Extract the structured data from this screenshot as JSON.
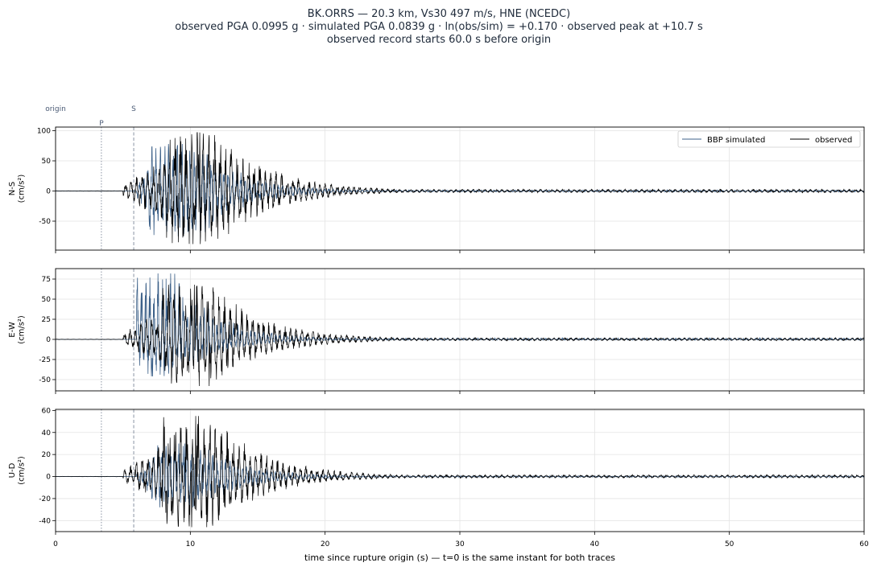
{
  "figure": {
    "title_lines": [
      "BK.ORRS  —  20.3 km, Vs30 497 m/s, HNE (NCEDC)",
      "observed PGA 0.0995 g   ·   simulated PGA 0.0839 g   ·   ln(obs/sim) = +0.170   ·   observed peak at +10.7 s",
      "observed record starts 60.0 s before origin"
    ],
    "xlabel": "time since rupture origin (s)   —   t=0 is the same instant for both traces",
    "phase_labels": {
      "origin": "origin",
      "p": "P",
      "s": "S"
    },
    "legend": {
      "simulated": "BBP simulated",
      "observed": "observed"
    }
  },
  "chart_data": {
    "type": "line",
    "x_unit": "s",
    "xlim": [
      0,
      60
    ],
    "x_ticks": [
      0,
      10,
      20,
      30,
      40,
      50,
      60
    ],
    "phase_times": {
      "origin": 0.0,
      "p": 3.4,
      "s": 5.8
    },
    "observed_peak_time": 10.7,
    "colors": {
      "simulated": "#3d6189",
      "observed": "#000000",
      "phase": "#8a93a3",
      "grid": "#e3e3e3"
    },
    "panels": [
      {
        "component": "N-S",
        "ylabel": [
          "N-S",
          "(cm/s²)"
        ],
        "ylim": [
          -98,
          106
        ],
        "y_ticks": [
          -50,
          0,
          50,
          100
        ],
        "observed_peak": {
          "positive": 97,
          "negative": -88,
          "t_pos": 10.7,
          "t_neg": 10.2
        },
        "simulated_peak": {
          "positive": 78,
          "negative": -75,
          "t_pos": 9.4,
          "t_neg": 9.1
        },
        "legend": true
      },
      {
        "component": "E-W",
        "ylabel": [
          "E-W",
          "(cm/s²)"
        ],
        "ylim": [
          -64,
          88
        ],
        "y_ticks": [
          -50,
          -25,
          0,
          25,
          50,
          75
        ],
        "observed_peak": {
          "positive": 68,
          "negative": -58,
          "t_pos": 10.3,
          "t_neg": 11.4
        },
        "simulated_peak": {
          "positive": 82,
          "negative": -46,
          "t_pos": 7.6,
          "t_neg": 7.2
        },
        "legend": false
      },
      {
        "component": "U-D",
        "ylabel": [
          "U-D",
          "(cm/s²)"
        ],
        "ylim": [
          -50,
          61
        ],
        "y_ticks": [
          -40,
          -20,
          0,
          20,
          40,
          60
        ],
        "observed_peak": {
          "positive": 55,
          "negative": -46,
          "t_pos": 10.4,
          "t_neg": 10.1
        },
        "simulated_peak": {
          "positive": 30,
          "negative": -28,
          "t_pos": 9.6,
          "t_neg": 10.2
        },
        "legend": false
      }
    ]
  }
}
